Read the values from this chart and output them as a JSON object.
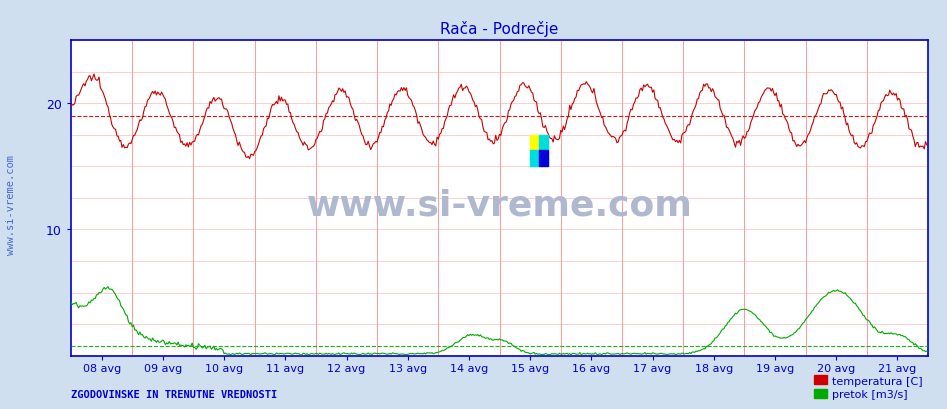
{
  "title": "Rača - Podrečje",
  "title_color": "#0000cc",
  "bg_color": "#d0dff0",
  "plot_bg_color": "#ffffff",
  "ylim": [
    0,
    25
  ],
  "yticks": [
    10,
    20
  ],
  "temp_color": "#cc0000",
  "flow_color": "#00aa00",
  "temp_avg_line": 19.0,
  "flow_avg_line": 0.8,
  "watermark": "www.si-vreme.com",
  "watermark_color": "#b0b8d0",
  "watermark_size": 26,
  "side_label": "www.si-vreme.com",
  "side_label_color": "#4466cc",
  "bottom_left_text": "ZGODOVINSKE IN TRENUTNE VREDNOSTI",
  "bottom_left_color": "#0000cc",
  "legend_temp": "temperatura [C]",
  "legend_flow": "pretok [m3/s]",
  "legend_color": "#0000cc",
  "x_labels": [
    "08 avg",
    "09 avg",
    "10 avg",
    "11 avg",
    "12 avg",
    "13 avg",
    "14 avg",
    "15 avg",
    "16 avg",
    "17 avg",
    "18 avg",
    "19 avg",
    "20 avg",
    "21 avg"
  ],
  "grid_v_color": "#ff8888",
  "grid_h_color": "#ffaaaa",
  "axis_color": "#0000cc",
  "temp_avg_dashed_color": "#cc0000",
  "flow_avg_dashed_color": "#00aa00",
  "n_points": 672,
  "points_per_day": 48
}
